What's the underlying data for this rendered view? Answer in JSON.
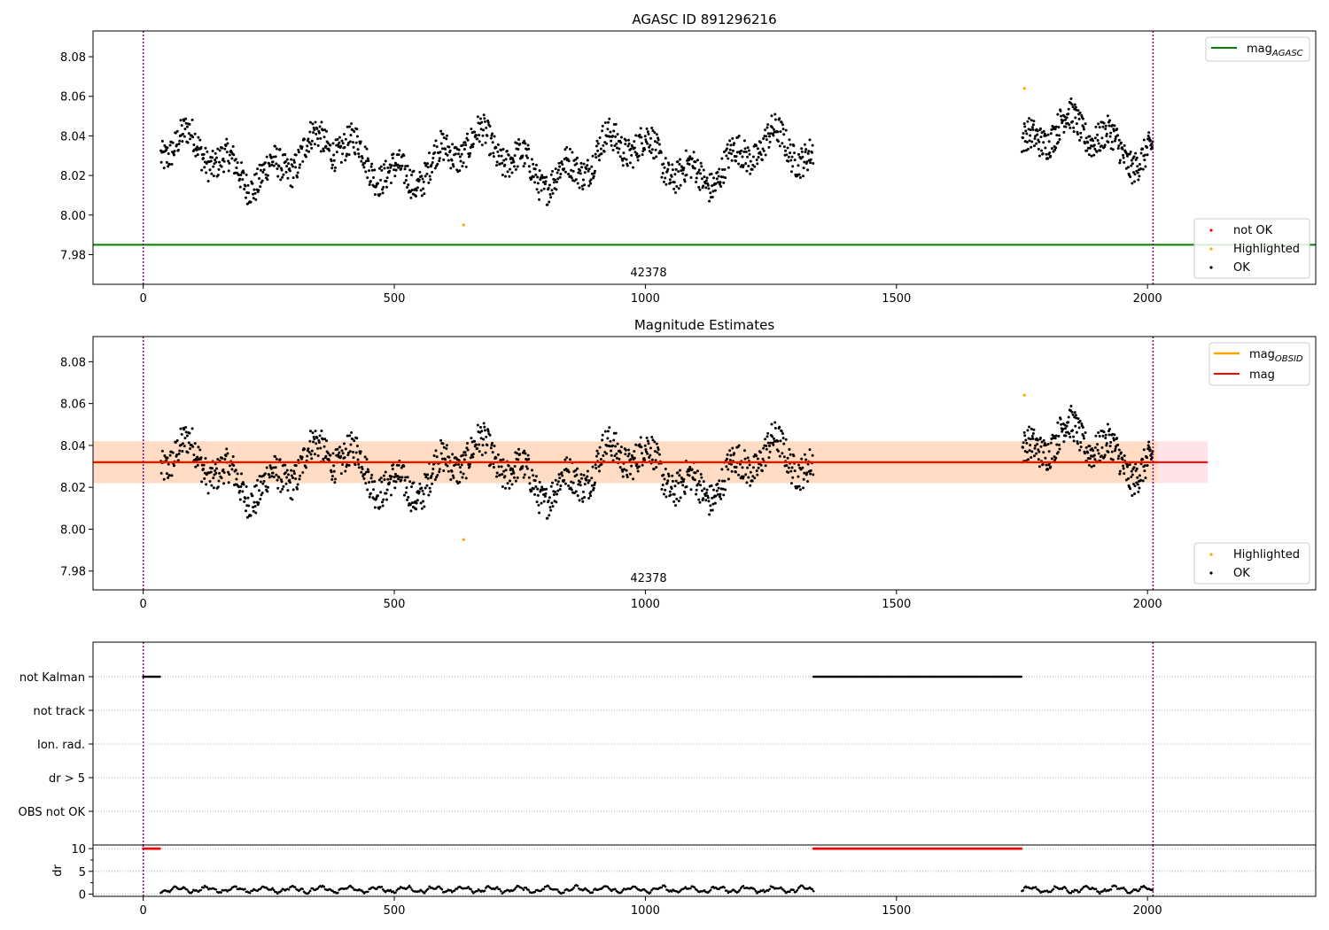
{
  "figure": {
    "background": "#ffffff"
  },
  "colors": {
    "ok": "#000000",
    "not_ok": "#ff0000",
    "highlighted": "#ffa500",
    "agasc": "#008000",
    "mag_line": "#ff0000",
    "obsid": "#ffa500",
    "band_fill": "#ffc0cb",
    "band_obsid": "#ffdab9",
    "vline": "#800080",
    "grid": "#b0b0b0"
  },
  "chart_data": [
    {
      "type": "scatter",
      "title": "AGASC ID 891296216",
      "xlim": [
        -100,
        2335
      ],
      "ylim": [
        7.965,
        8.093
      ],
      "xticks": [
        0,
        500,
        1000,
        1500,
        2000
      ],
      "yticks": [
        7.98,
        8.0,
        8.02,
        8.04,
        8.06,
        8.08
      ],
      "vlines": [
        0,
        2011
      ],
      "hlines": [
        {
          "name": "mag_AGASC",
          "value": 7.985
        }
      ],
      "annotation": {
        "text": "42378",
        "x": 1005,
        "y": 7.969
      },
      "segments": [
        {
          "x0": 35,
          "x1": 1335,
          "mean": 8.028,
          "amp": 0.013,
          "noise": 0.008,
          "step": 1.1
        },
        {
          "x0": 1750,
          "x1": 2011,
          "mean": 8.037,
          "amp": 0.012,
          "noise": 0.008,
          "step": 0.95
        }
      ],
      "highlighted_points": [
        {
          "x": 638,
          "y": 7.995
        },
        {
          "x": 1755,
          "y": 8.064
        }
      ],
      "legends": {
        "upper": {
          "entries": [
            "mag_AGASC"
          ],
          "placement": "upper right"
        },
        "lower": {
          "entries": [
            "not OK",
            "Highlighted",
            "OK"
          ],
          "placement": "lower right"
        }
      }
    },
    {
      "type": "scatter",
      "title": "Magnitude Estimates",
      "xlim": [
        -100,
        2335
      ],
      "ylim": [
        7.971,
        8.092
      ],
      "xticks": [
        0,
        500,
        1000,
        1500,
        2000
      ],
      "yticks": [
        7.98,
        8.0,
        8.02,
        8.04,
        8.06,
        8.08
      ],
      "vlines": [
        0,
        2011
      ],
      "mag": {
        "value": 8.032,
        "low": 8.022,
        "high": 8.042,
        "x0": -100,
        "x1": 2120
      },
      "obsid": {
        "value": 8.032,
        "low": 8.022,
        "high": 8.042,
        "x0": -100,
        "x1": 2020
      },
      "annotation": {
        "text": "42378",
        "x": 1005,
        "y": 7.973
      },
      "highlighted_points": [
        {
          "x": 638,
          "y": 7.995
        },
        {
          "x": 1755,
          "y": 8.064
        }
      ],
      "legends": {
        "upper": {
          "entries": [
            "mag_OBSID",
            "mag"
          ],
          "placement": "upper right"
        },
        "lower": {
          "entries": [
            "Highlighted",
            "OK"
          ],
          "placement": "lower right"
        }
      }
    },
    {
      "type": "scatter",
      "title": "",
      "categories": [
        "not Kalman",
        "not track",
        "Ion. rad.",
        "dr > 5",
        "OBS not OK"
      ],
      "xlim": [
        -100,
        2335
      ],
      "xticks": [
        0,
        500,
        1000,
        1500,
        2000
      ],
      "vlines": [
        0,
        2011
      ],
      "flagged_ranges": [
        {
          "flag": "not Kalman",
          "x0": 0,
          "x1": 35
        },
        {
          "flag": "not Kalman",
          "x0": 1335,
          "x1": 1750
        }
      ]
    },
    {
      "type": "scatter",
      "title": "",
      "ylabel": "dr",
      "ylim": [
        -0.5,
        10.8
      ],
      "yticks": [
        0,
        5,
        10
      ],
      "xlim": [
        -100,
        2335
      ],
      "xticks": [
        0,
        500,
        1000,
        1500,
        2000
      ],
      "vlines": [
        0,
        2011
      ],
      "clipped_value": 10,
      "clipped_ranges": [
        {
          "x0": 0,
          "x1": 35
        },
        {
          "x0": 1335,
          "x1": 1750
        }
      ],
      "ok_ranges": [
        {
          "x0": 35,
          "x1": 1335
        },
        {
          "x0": 1750,
          "x1": 2011
        }
      ]
    }
  ],
  "legend_labels": {
    "mag_agasc_main": "mag",
    "mag_agasc_sub": "AGASC",
    "mag_obsid_main": "mag",
    "mag_obsid_sub": "OBSID",
    "mag": "mag",
    "not_ok": "not OK",
    "highlighted": "Highlighted",
    "ok": "OK"
  }
}
